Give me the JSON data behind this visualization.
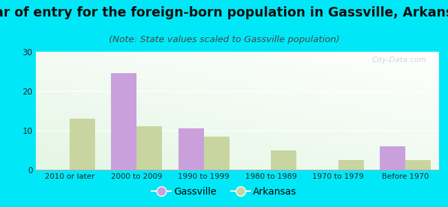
{
  "title": "Year of entry for the foreign-born population in Gassville, Arkansas",
  "subtitle": "(Note: State values scaled to Gassville population)",
  "categories": [
    "2010 or later",
    "2000 to 2009",
    "1990 to 1999",
    "1980 to 1989",
    "1970 to 1979",
    "Before 1970"
  ],
  "gassville_values": [
    0,
    24.5,
    10.5,
    0,
    0,
    6
  ],
  "arkansas_values": [
    13,
    11,
    8.5,
    5,
    2.5,
    2.5
  ],
  "gassville_color": "#c9a0dc",
  "arkansas_color": "#c8d5a0",
  "background_outer": "#00e8f8",
  "ylim": [
    0,
    30
  ],
  "yticks": [
    0,
    10,
    20,
    30
  ],
  "title_fontsize": 13.5,
  "subtitle_fontsize": 9.5,
  "bar_width": 0.38,
  "watermark": "City-Data.com"
}
